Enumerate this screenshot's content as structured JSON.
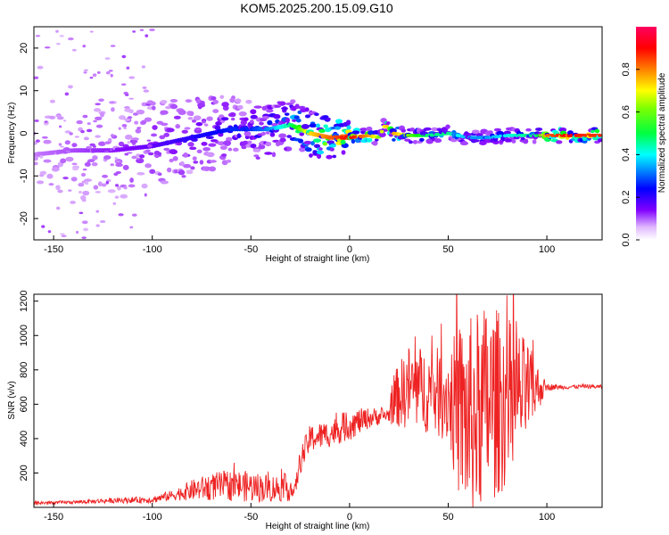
{
  "title": "KOM5.2025.200.15.09.G10",
  "chart_data": [
    {
      "type": "heatmap",
      "xlabel": "Height of straight line (km)",
      "ylabel": "Frequency (Hz)",
      "xlim": [
        -160,
        128
      ],
      "ylim": [
        -25,
        25
      ],
      "xticks": [
        -150,
        -100,
        -50,
        0,
        50,
        100
      ],
      "yticks": [
        -20,
        -10,
        0,
        10,
        20
      ],
      "colorbar": {
        "label": "Normalized spectral amplitude",
        "range": [
          0,
          1
        ],
        "ticks": [
          0.0,
          0.2,
          0.4,
          0.6,
          0.8
        ],
        "colormap": "rainbow",
        "colors": [
          "#ffffff",
          "#c070ff",
          "#8000ff",
          "#0000ff",
          "#00ffff",
          "#00ff00",
          "#ffff00",
          "#ff8000",
          "#ff0000",
          "#ff0060"
        ]
      },
      "ridge": {
        "x": [
          -160,
          -140,
          -120,
          -100,
          -80,
          -60,
          -50,
          -40,
          -30,
          -25,
          -20,
          -10,
          0,
          10,
          15,
          18,
          22,
          30,
          40,
          50,
          60,
          70,
          80,
          90,
          95,
          100,
          110,
          120,
          128
        ],
        "freq": [
          -5,
          -4,
          -4,
          -3,
          -1,
          1,
          1,
          1,
          2,
          1,
          0,
          -1,
          -1,
          -0.5,
          -1,
          2,
          0,
          -0.5,
          -0.5,
          0,
          -1,
          -1,
          -0.5,
          -0.5,
          -0.5,
          -0.5,
          -0.5,
          -0.5,
          -0.5
        ],
        "amplitude": [
          0.1,
          0.15,
          0.2,
          0.25,
          0.3,
          0.35,
          0.35,
          0.4,
          0.5,
          0.6,
          0.7,
          0.8,
          0.9,
          0.75,
          0.6,
          0.7,
          0.75,
          0.6,
          0.5,
          0.5,
          0.4,
          0.4,
          0.45,
          0.5,
          0.5,
          0.8,
          0.9,
          0.85,
          0.85
        ]
      }
    },
    {
      "type": "line",
      "xlabel": "Height of straight line (km)",
      "ylabel": "SNR (v/v)",
      "xlim": [
        -160,
        128
      ],
      "ylim": [
        0,
        1240
      ],
      "xticks": [
        -150,
        -100,
        -50,
        0,
        50,
        100
      ],
      "yticks": [
        200,
        400,
        600,
        800,
        1000,
        1200
      ],
      "color": "#ee2222",
      "trend": {
        "x": [
          -160,
          -140,
          -120,
          -100,
          -90,
          -80,
          -70,
          -60,
          -50,
          -40,
          -30,
          -28,
          -25,
          -20,
          -10,
          0,
          10,
          20,
          22,
          30,
          40,
          50,
          55,
          60,
          70,
          80,
          90,
          95,
          100,
          105,
          110,
          120,
          128
        ],
        "center": [
          25,
          30,
          40,
          45,
          70,
          100,
          120,
          130,
          120,
          110,
          115,
          80,
          270,
          400,
          430,
          480,
          520,
          540,
          620,
          700,
          680,
          650,
          560,
          500,
          600,
          620,
          670,
          690,
          700,
          700,
          700,
          705,
          700
        ],
        "spread": [
          10,
          10,
          15,
          20,
          30,
          60,
          80,
          90,
          90,
          80,
          80,
          40,
          80,
          80,
          80,
          90,
          60,
          40,
          150,
          250,
          250,
          280,
          500,
          600,
          600,
          500,
          300,
          150,
          20,
          15,
          12,
          12,
          12
        ]
      }
    }
  ]
}
